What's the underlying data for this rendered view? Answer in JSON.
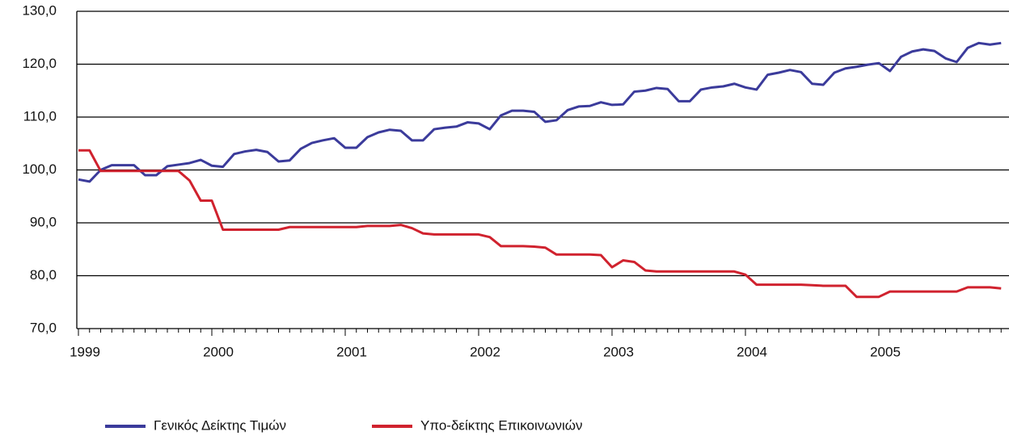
{
  "chart_data": {
    "type": "line",
    "categories": [
      "1999",
      null,
      null,
      null,
      null,
      null,
      null,
      null,
      null,
      null,
      null,
      null,
      "2000",
      null,
      null,
      null,
      null,
      null,
      null,
      null,
      null,
      null,
      null,
      null,
      "2001",
      null,
      null,
      null,
      null,
      null,
      null,
      null,
      null,
      null,
      null,
      null,
      "2002",
      null,
      null,
      null,
      null,
      null,
      null,
      null,
      null,
      null,
      null,
      null,
      "2003",
      null,
      null,
      null,
      null,
      null,
      null,
      null,
      null,
      null,
      null,
      null,
      "2004",
      null,
      null,
      null,
      null,
      null,
      null,
      null,
      null,
      null,
      null,
      null,
      "2005",
      null,
      null,
      null,
      null,
      null,
      null,
      null,
      null,
      null,
      null,
      null
    ],
    "series": [
      {
        "name": "Γενικός Δείκτης Τιμών",
        "color": "#3b3b9b",
        "values": [
          98.2,
          97.8,
          100.0,
          100.9,
          100.9,
          100.9,
          99.0,
          99.0,
          100.7,
          101.0,
          101.3,
          101.9,
          100.8,
          100.6,
          103.0,
          103.5,
          103.8,
          103.4,
          101.6,
          101.8,
          104.0,
          105.1,
          105.6,
          106.0,
          104.2,
          104.2,
          106.2,
          107.1,
          107.6,
          107.4,
          105.6,
          105.6,
          107.7,
          108.0,
          108.2,
          109.0,
          108.8,
          107.7,
          110.3,
          111.2,
          111.2,
          111.0,
          109.1,
          109.4,
          111.3,
          112.0,
          112.1,
          112.8,
          112.3,
          112.4,
          114.8,
          115.0,
          115.5,
          115.3,
          113.0,
          113.0,
          115.2,
          115.6,
          115.8,
          116.3,
          115.6,
          115.2,
          118.0,
          118.4,
          118.9,
          118.5,
          116.3,
          116.1,
          118.4,
          119.2,
          119.5,
          119.9,
          120.2,
          118.7,
          121.4,
          122.4,
          122.8,
          122.5,
          121.1,
          120.4,
          123.1,
          124.0,
          123.7,
          124.0
        ]
      },
      {
        "name": "Υπο-δείκτης Επικοινωνιών",
        "color": "#d0222e",
        "values": [
          103.7,
          103.7,
          99.8,
          99.8,
          99.8,
          99.8,
          99.8,
          99.8,
          99.8,
          99.8,
          98.0,
          94.2,
          94.2,
          88.7,
          88.7,
          88.7,
          88.7,
          88.7,
          88.7,
          89.2,
          89.2,
          89.2,
          89.2,
          89.2,
          89.2,
          89.2,
          89.4,
          89.4,
          89.4,
          89.6,
          89.0,
          88.0,
          87.8,
          87.8,
          87.8,
          87.8,
          87.8,
          87.3,
          85.6,
          85.6,
          85.6,
          85.5,
          85.3,
          84.0,
          84.0,
          84.0,
          84.0,
          83.9,
          81.6,
          82.9,
          82.6,
          81.0,
          80.8,
          80.8,
          80.8,
          80.8,
          80.8,
          80.8,
          80.8,
          80.8,
          80.2,
          78.3,
          78.3,
          78.3,
          78.3,
          78.3,
          78.2,
          78.1,
          78.1,
          78.1,
          76.0,
          76.0,
          76.0,
          77.0,
          77.0,
          77.0,
          77.0,
          77.0,
          77.0,
          77.0,
          77.8,
          77.8,
          77.8,
          77.6
        ]
      }
    ],
    "ylim": [
      70,
      130
    ],
    "yticks": [
      {
        "value": 70,
        "label": "70,0"
      },
      {
        "value": 80,
        "label": "80,0"
      },
      {
        "value": 90,
        "label": "90,0"
      },
      {
        "value": 100,
        "label": "100,0"
      },
      {
        "value": 110,
        "label": "110,0"
      },
      {
        "value": 120,
        "label": "120,0"
      },
      {
        "value": 130,
        "label": "130,0"
      }
    ],
    "grid": true,
    "legend": "bottom"
  }
}
